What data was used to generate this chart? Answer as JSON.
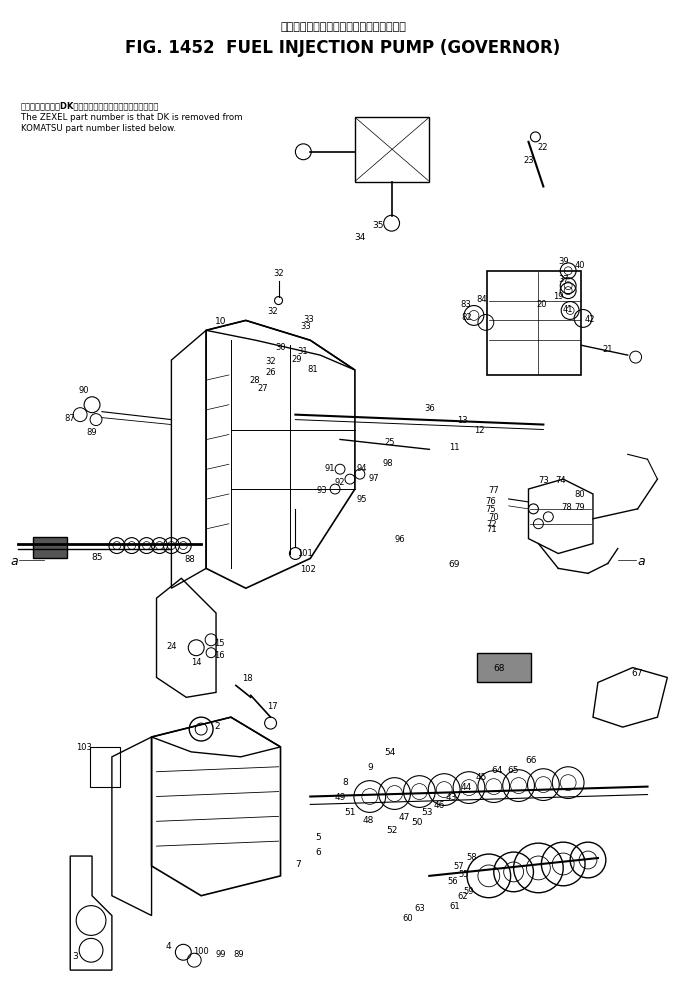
{
  "title_japanese": "フェエルインジェクションボンプ　ガバナ",
  "title_english": "FIG. 1452  FUEL INJECTION PUMP (GOVERNOR)",
  "note_japanese": "品番のメーカ記号DKを除いたものがゼクセルの品番です。",
  "note_english_line1": "The ZEXEL part number is that DK is removed from",
  "note_english_line2": "KOMATSU part number listed below.",
  "bg_color": "#ffffff",
  "text_color": "#000000",
  "fig_width": 6.87,
  "fig_height": 9.87,
  "dpi": 100,
  "title_fontsize": 12,
  "subtitle_fontsize": 8,
  "note_fontsize": 6.2,
  "note_japanese_fontsize": 6.0
}
